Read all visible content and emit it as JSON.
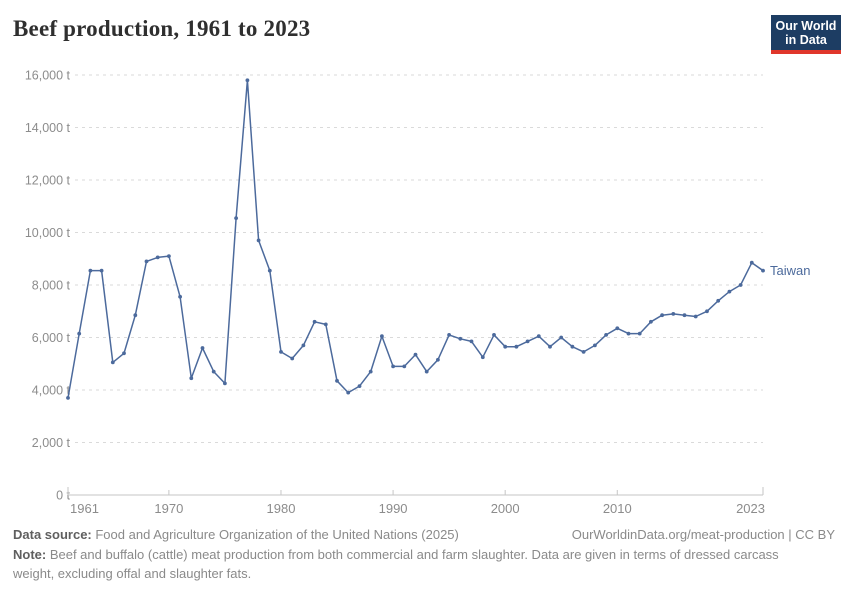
{
  "header": {
    "title": "Beef production, 1961 to 2023"
  },
  "logo": {
    "line1": "Our World",
    "line2": "in Data",
    "bg_color": "#1d3d63",
    "accent_color": "#e0362b"
  },
  "chart_data": {
    "type": "line",
    "title": "Beef production, 1961 to 2023",
    "xlabel": "",
    "ylabel": "",
    "unit": "t",
    "xlim": [
      1961,
      2023
    ],
    "ylim": [
      0,
      16000
    ],
    "grid": "horizontal-dashed",
    "legend_position": "end-of-line",
    "x_ticks": [
      1961,
      1970,
      1980,
      1990,
      2000,
      2010,
      2023
    ],
    "y_ticks": [
      0,
      2000,
      4000,
      6000,
      8000,
      10000,
      12000,
      14000,
      16000
    ],
    "series": [
      {
        "name": "Taiwan",
        "color": "#4c6a9c",
        "years": [
          1961,
          1962,
          1963,
          1964,
          1965,
          1966,
          1967,
          1968,
          1969,
          1970,
          1971,
          1972,
          1973,
          1974,
          1975,
          1976,
          1977,
          1978,
          1979,
          1980,
          1981,
          1982,
          1983,
          1984,
          1985,
          1986,
          1987,
          1988,
          1989,
          1990,
          1991,
          1992,
          1993,
          1994,
          1995,
          1996,
          1997,
          1998,
          1999,
          2000,
          2001,
          2002,
          2003,
          2004,
          2005,
          2006,
          2007,
          2008,
          2009,
          2010,
          2011,
          2012,
          2013,
          2014,
          2015,
          2016,
          2017,
          2018,
          2019,
          2020,
          2021,
          2022,
          2023
        ],
        "values": [
          3700,
          6150,
          8550,
          8550,
          5050,
          5400,
          6850,
          8900,
          9050,
          9100,
          7550,
          4450,
          5600,
          4700,
          4250,
          10550,
          15800,
          9700,
          8550,
          5450,
          5200,
          5700,
          6600,
          6500,
          4350,
          3900,
          4150,
          4700,
          6050,
          4900,
          4900,
          5350,
          4700,
          5150,
          6100,
          5950,
          5850,
          5250,
          6100,
          5650,
          5650,
          5850,
          6050,
          5650,
          6000,
          5650,
          5450,
          5700,
          6100,
          6350,
          6150,
          6150,
          6600,
          6850,
          6900,
          6850,
          6800,
          7000,
          7400,
          7750,
          8000,
          8850,
          8550
        ]
      }
    ]
  },
  "footer": {
    "source_label": "Data source:",
    "source_text": " Food and Agriculture Organization of the United Nations (2025)",
    "link_text": "OurWorldinData.org/meat-production | CC BY",
    "note_label": "Note:",
    "note_text": " Beef and buffalo (cattle) meat production from both commercial and farm slaughter. Data are given in terms of dressed carcass weight, excluding offal and slaughter fats."
  }
}
